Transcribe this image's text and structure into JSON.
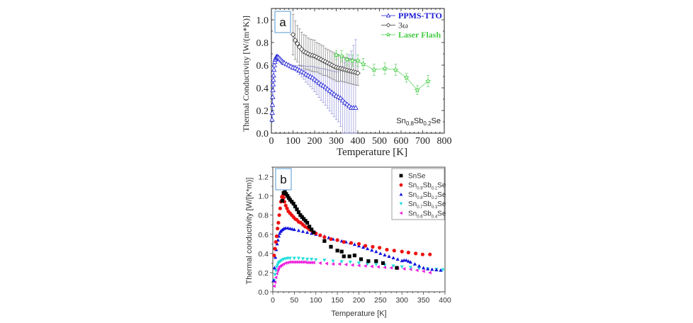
{
  "figure": {
    "panel_labels": [
      "a",
      "b"
    ]
  },
  "chart_data": [
    {
      "type": "scatter",
      "panel": "a",
      "title": "",
      "xlabel": "Temperature [K]",
      "ylabel": "Thermal Conductivity [W/(m*K)]",
      "xlim": [
        0,
        800
      ],
      "ylim": [
        0.0,
        1.1
      ],
      "xticks": [
        0,
        100,
        200,
        300,
        400,
        500,
        600,
        700,
        800
      ],
      "yticks": [
        0.0,
        0.2,
        0.4,
        0.6,
        0.8,
        1.0
      ],
      "xtick_labels": [
        "0",
        "100",
        "200",
        "300",
        "400",
        "500",
        "600",
        "700",
        "800"
      ],
      "ytick_labels": [
        "0.0",
        "0.2",
        "0.4",
        "0.6",
        "0.8",
        "1.0"
      ],
      "grid": false,
      "legend_position": "top-right",
      "annotation": {
        "base": "Sn",
        "sub1": "0.8",
        "mid": "Sb",
        "sub2": "0.2",
        "end": "Se",
        "position": "bottom-right"
      },
      "series": [
        {
          "name": "PPMS-TTO",
          "color": "#1a1ad6",
          "marker": "triangle-open",
          "x": [
            3,
            4,
            5,
            6,
            7,
            8,
            9,
            10,
            12,
            14,
            16,
            18,
            20,
            22,
            25,
            28,
            31,
            35,
            40,
            45,
            50,
            55,
            60,
            70,
            80,
            90,
            100,
            110,
            120,
            130,
            140,
            150,
            160,
            170,
            180,
            190,
            200,
            210,
            220,
            230,
            240,
            250,
            260,
            270,
            280,
            290,
            300,
            310,
            320,
            330,
            340,
            350,
            360,
            370,
            380,
            390
          ],
          "y": [
            0.12,
            0.18,
            0.25,
            0.32,
            0.38,
            0.43,
            0.47,
            0.51,
            0.56,
            0.6,
            0.63,
            0.65,
            0.66,
            0.67,
            0.675,
            0.675,
            0.67,
            0.665,
            0.655,
            0.645,
            0.635,
            0.625,
            0.62,
            0.61,
            0.6,
            0.59,
            0.58,
            0.575,
            0.565,
            0.555,
            0.545,
            0.535,
            0.52,
            0.51,
            0.5,
            0.49,
            0.475,
            0.46,
            0.445,
            0.43,
            0.42,
            0.405,
            0.39,
            0.375,
            0.36,
            0.345,
            0.33,
            0.32,
            0.31,
            0.29,
            0.27,
            0.255,
            0.24,
            0.225,
            0.225,
            0.225
          ],
          "err": [
            0,
            0,
            0,
            0,
            0,
            0,
            0,
            0,
            0,
            0,
            0,
            0,
            0,
            0,
            0,
            0,
            0,
            0,
            0,
            0,
            0,
            0,
            0,
            0,
            0,
            0,
            0.02,
            0.02,
            0.03,
            0.04,
            0.05,
            0.06,
            0.07,
            0.08,
            0.09,
            0.1,
            0.11,
            0.12,
            0.13,
            0.14,
            0.15,
            0.16,
            0.17,
            0.18,
            0.19,
            0.2,
            0.21,
            0.22,
            0.25,
            0.3,
            0.35,
            0.4,
            0.45,
            0.5,
            0.55,
            0.6
          ]
        },
        {
          "name": "3ω",
          "color": "#333333",
          "marker": "diamond-open",
          "x": [
            100,
            110,
            120,
            130,
            140,
            150,
            160,
            170,
            180,
            190,
            200,
            210,
            220,
            230,
            240,
            250,
            260,
            270,
            280,
            290,
            300,
            310,
            320,
            330,
            340,
            350,
            360,
            370,
            380,
            390,
            400
          ],
          "y": [
            0.87,
            0.82,
            0.79,
            0.76,
            0.74,
            0.72,
            0.71,
            0.7,
            0.69,
            0.685,
            0.68,
            0.67,
            0.66,
            0.65,
            0.64,
            0.63,
            0.62,
            0.61,
            0.6,
            0.59,
            0.58,
            0.575,
            0.57,
            0.565,
            0.56,
            0.555,
            0.55,
            0.545,
            0.54,
            0.535,
            0.53
          ],
          "err": [
            0.18,
            0.17,
            0.16,
            0.16,
            0.15,
            0.15,
            0.15,
            0.14,
            0.14,
            0.14,
            0.14,
            0.13,
            0.13,
            0.13,
            0.13,
            0.12,
            0.12,
            0.12,
            0.12,
            0.12,
            0.12,
            0.12,
            0.11,
            0.11,
            0.11,
            0.11,
            0.11,
            0.11,
            0.11,
            0.11,
            0.11
          ]
        },
        {
          "name": "Laser Flash",
          "color": "#44cc44",
          "marker": "star-open",
          "x": [
            300,
            325,
            350,
            375,
            400,
            425,
            475,
            525,
            575,
            625,
            675,
            725
          ],
          "y": [
            0.69,
            0.68,
            0.65,
            0.64,
            0.64,
            0.61,
            0.56,
            0.57,
            0.56,
            0.49,
            0.38,
            0.46
          ],
          "err": [
            0.04,
            0.05,
            0.05,
            0.05,
            0.05,
            0.05,
            0.05,
            0.05,
            0.05,
            0.04,
            0.04,
            0.05
          ]
        }
      ]
    },
    {
      "type": "scatter",
      "panel": "b",
      "title": "",
      "xlabel": "Temperature [K]",
      "ylabel": "Thermal conductivity [W/[K*m)]",
      "xlim": [
        0,
        400
      ],
      "ylim": [
        0.0,
        1.3
      ],
      "xticks": [
        0,
        50,
        100,
        150,
        200,
        250,
        300,
        350,
        400
      ],
      "yticks": [
        0.0,
        0.2,
        0.4,
        0.6,
        0.8,
        1.0,
        1.2
      ],
      "xtick_labels": [
        "0",
        "50",
        "100",
        "150",
        "200",
        "250",
        "300",
        "350",
        "400"
      ],
      "ytick_labels": [
        "0.0",
        "0.2",
        "0.4",
        "0.6",
        "0.8",
        "1.0",
        "1.2"
      ],
      "grid": false,
      "legend_position": "top-right",
      "series": [
        {
          "name": "SnSe",
          "label_parts": {
            "base": "SnSe"
          },
          "color": "#000000",
          "marker": "square",
          "x": [
            22,
            25,
            28,
            31,
            34,
            37,
            40,
            44,
            48,
            52,
            56,
            60,
            64,
            68,
            72,
            76,
            80,
            85,
            90,
            95,
            120,
            135,
            150,
            160,
            165,
            178,
            190,
            205,
            222,
            240,
            256,
            288
          ],
          "y": [
            0.95,
            1.03,
            1.04,
            1.02,
            1.0,
            0.98,
            0.96,
            0.94,
            0.92,
            0.89,
            0.86,
            0.83,
            0.8,
            0.78,
            0.76,
            0.74,
            0.72,
            0.68,
            0.65,
            0.62,
            0.53,
            0.47,
            0.43,
            0.42,
            0.37,
            0.37,
            0.38,
            0.34,
            0.32,
            0.32,
            0.3,
            0.25
          ]
        },
        {
          "name": "Sn0.9Sb0.1Se",
          "label_parts": {
            "base": "Sn",
            "sub1": "0.9",
            "mid": "Sb",
            "sub2": "0.1",
            "end": "Se"
          },
          "color": "#ee1111",
          "marker": "circle",
          "x": [
            3,
            5,
            7,
            9,
            11,
            13,
            15,
            17,
            19,
            21,
            23,
            25,
            27,
            30,
            33,
            36,
            40,
            44,
            48,
            52,
            56,
            60,
            65,
            70,
            75,
            80,
            85,
            90,
            95,
            100,
            110,
            120,
            135,
            150,
            165,
            182,
            200,
            215,
            232,
            248,
            265,
            282,
            300,
            315,
            332,
            348,
            365
          ],
          "y": [
            0.38,
            0.45,
            0.52,
            0.58,
            0.66,
            0.72,
            0.8,
            0.87,
            0.94,
            0.99,
            1.0,
            0.98,
            0.94,
            0.9,
            0.87,
            0.84,
            0.82,
            0.8,
            0.78,
            0.76,
            0.75,
            0.73,
            0.72,
            0.7,
            0.68,
            0.67,
            0.65,
            0.64,
            0.62,
            0.61,
            0.59,
            0.57,
            0.55,
            0.54,
            0.52,
            0.51,
            0.5,
            0.48,
            0.47,
            0.46,
            0.44,
            0.43,
            0.42,
            0.41,
            0.4,
            0.39,
            0.39
          ]
        },
        {
          "name": "Sn0.8Sb0.2Se",
          "label_parts": {
            "base": "Sn",
            "sub1": "0.8",
            "mid": "Sb",
            "sub2": "0.2",
            "end": "Se"
          },
          "color": "#1111dd",
          "marker": "triangle-up",
          "x": [
            2,
            4,
            6,
            8,
            10,
            12,
            14,
            16,
            18,
            20,
            23,
            26,
            30,
            35,
            40,
            45,
            50,
            60,
            70,
            80,
            90,
            100,
            110,
            120,
            130,
            140,
            150,
            160,
            170,
            180,
            190,
            200,
            210,
            220,
            230,
            240,
            250,
            260,
            270,
            280,
            290,
            300,
            305,
            310,
            315,
            320,
            330,
            340,
            350,
            360,
            370,
            380,
            390
          ],
          "y": [
            0.12,
            0.25,
            0.36,
            0.44,
            0.5,
            0.54,
            0.58,
            0.61,
            0.63,
            0.64,
            0.65,
            0.66,
            0.665,
            0.665,
            0.66,
            0.655,
            0.65,
            0.64,
            0.63,
            0.62,
            0.61,
            0.6,
            0.59,
            0.58,
            0.565,
            0.55,
            0.54,
            0.53,
            0.52,
            0.51,
            0.495,
            0.48,
            0.465,
            0.45,
            0.435,
            0.42,
            0.4,
            0.385,
            0.37,
            0.355,
            0.34,
            0.325,
            0.33,
            0.33,
            0.32,
            0.31,
            0.29,
            0.27,
            0.25,
            0.24,
            0.235,
            0.23,
            0.225
          ]
        },
        {
          "name": "Sn0.7Sb0.3Se",
          "label_parts": {
            "base": "Sn",
            "sub1": "0.7",
            "mid": "Sb",
            "sub2": "0.3",
            "end": "Se"
          },
          "color": "#22dddd",
          "marker": "triangle-down",
          "x": [
            3,
            5,
            7,
            9,
            11,
            13,
            15,
            18,
            21,
            25,
            30,
            35,
            40,
            50,
            60,
            70,
            80,
            90,
            100,
            120,
            140,
            160,
            180,
            200,
            220,
            240,
            260,
            280,
            300,
            320,
            340,
            360,
            380,
            395
          ],
          "y": [
            0.12,
            0.18,
            0.22,
            0.26,
            0.28,
            0.3,
            0.31,
            0.32,
            0.33,
            0.34,
            0.345,
            0.35,
            0.35,
            0.35,
            0.35,
            0.345,
            0.34,
            0.34,
            0.335,
            0.33,
            0.32,
            0.315,
            0.31,
            0.3,
            0.29,
            0.285,
            0.28,
            0.27,
            0.26,
            0.255,
            0.245,
            0.24,
            0.235,
            0.23
          ]
        },
        {
          "name": "Sn0.6Sb0.4Se",
          "label_parts": {
            "base": "Sn",
            "sub1": "0.6",
            "mid": "Sb",
            "sub2": "0.4",
            "end": "Se"
          },
          "color": "#ee22dd",
          "marker": "triangle-left",
          "x": [
            3,
            5,
            7,
            9,
            11,
            13,
            15,
            18,
            21,
            25,
            30,
            35,
            40,
            45,
            50,
            55,
            60,
            65,
            70,
            75,
            80,
            85,
            90,
            95,
            110,
            125,
            140,
            155,
            170,
            185,
            200,
            215,
            230,
            245,
            260,
            275,
            290,
            305,
            320,
            335,
            350,
            365
          ],
          "y": [
            0.06,
            0.1,
            0.15,
            0.19,
            0.22,
            0.24,
            0.26,
            0.27,
            0.28,
            0.29,
            0.3,
            0.305,
            0.31,
            0.31,
            0.31,
            0.31,
            0.31,
            0.31,
            0.31,
            0.31,
            0.305,
            0.305,
            0.305,
            0.305,
            0.3,
            0.295,
            0.29,
            0.29,
            0.285,
            0.28,
            0.275,
            0.27,
            0.265,
            0.26,
            0.255,
            0.25,
            0.245,
            0.24,
            0.235,
            0.225,
            0.215,
            0.2
          ]
        }
      ]
    }
  ]
}
